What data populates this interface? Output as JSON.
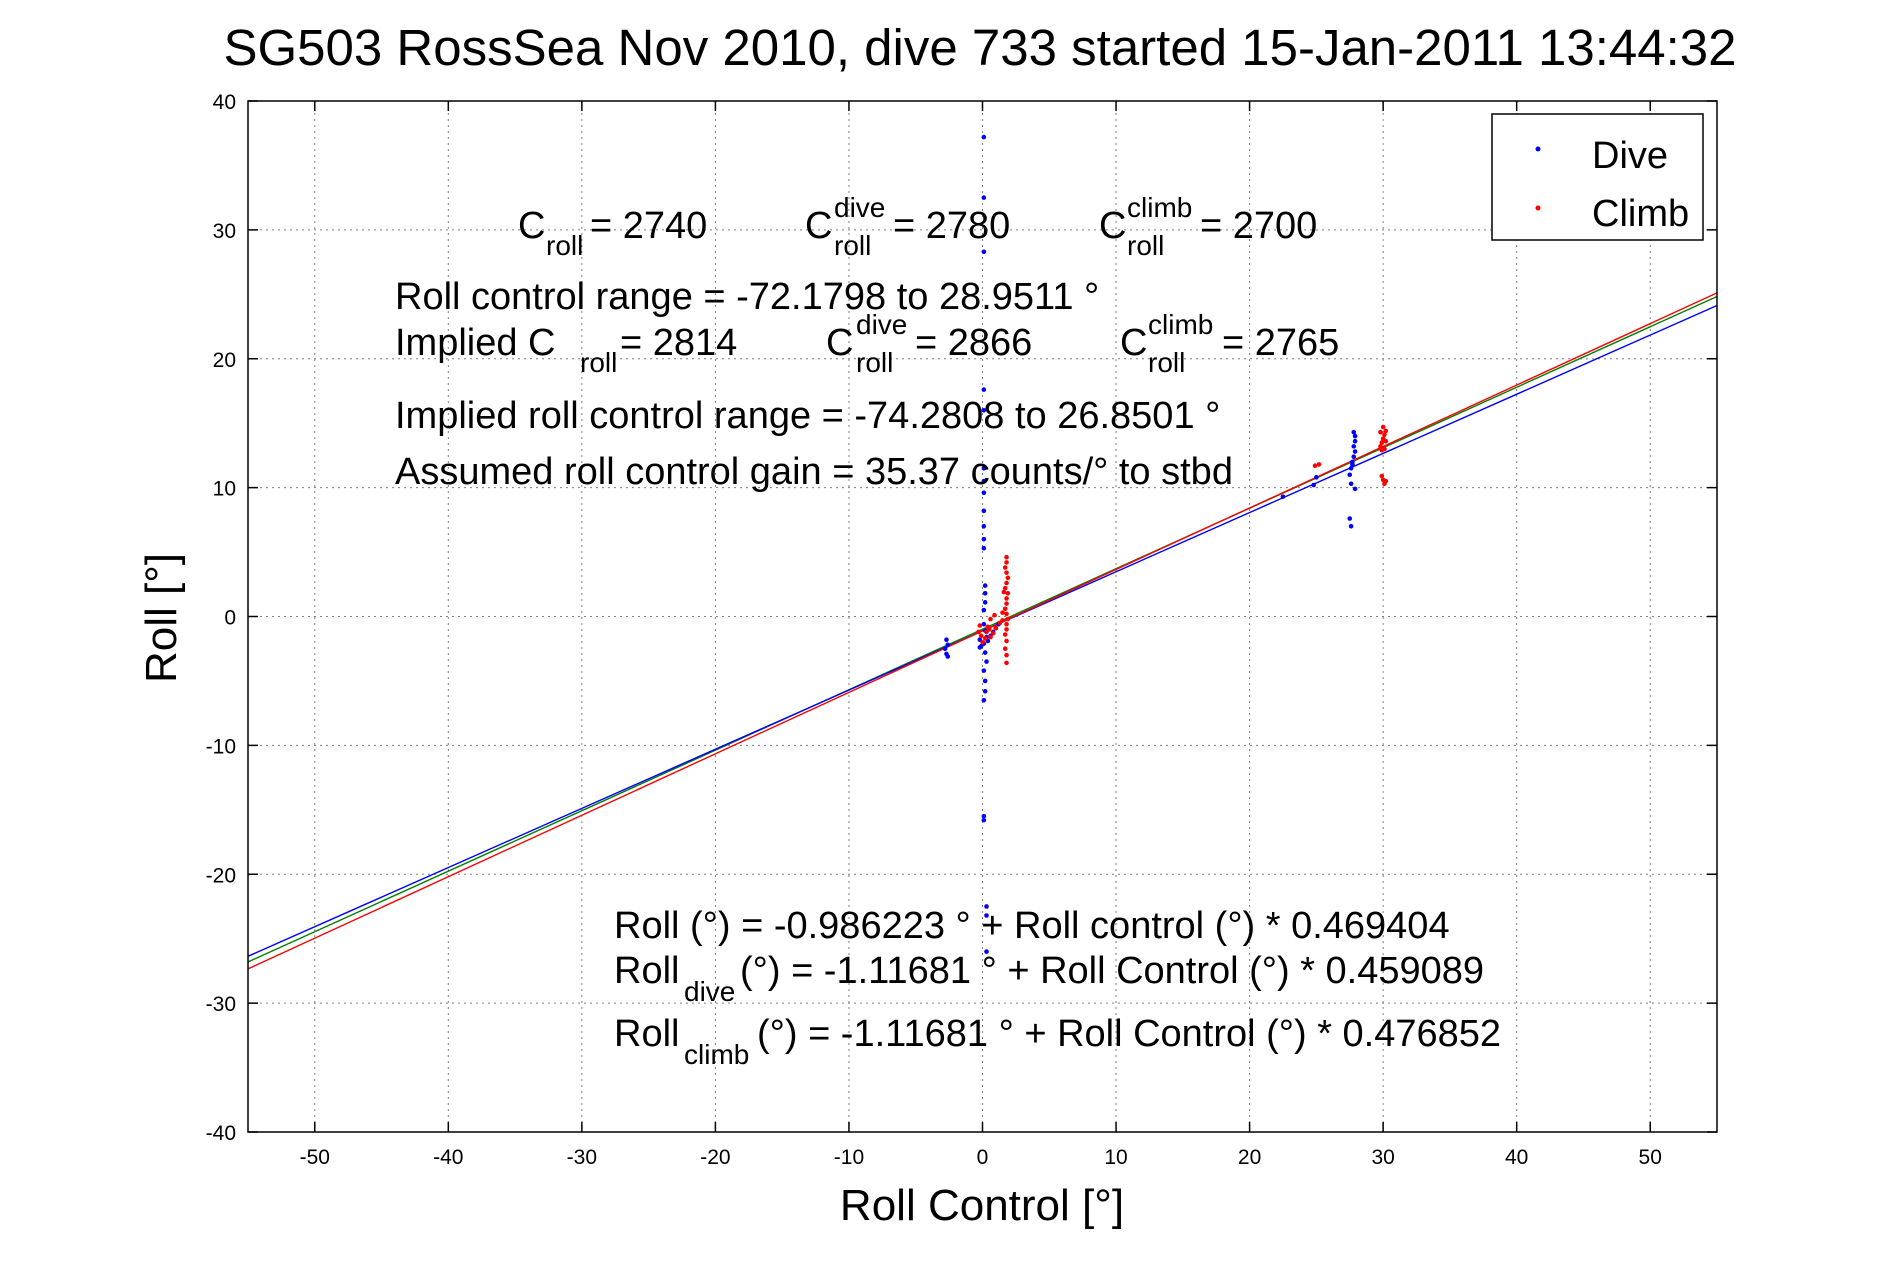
{
  "chart_data": {
    "type": "scatter",
    "title": "SG503 RossSea Nov 2010, dive 733 started 15-Jan-2011 13:44:32",
    "xlabel": "Roll Control [°]",
    "ylabel": "Roll [°]",
    "xlim": [
      -55,
      55
    ],
    "ylim": [
      -40,
      40
    ],
    "x_ticks": [
      -50,
      -40,
      -30,
      -20,
      -10,
      0,
      10,
      20,
      30,
      40,
      50
    ],
    "y_ticks": [
      -40,
      -30,
      -20,
      -10,
      0,
      10,
      20,
      30,
      40
    ],
    "grid": true,
    "legend_position": "top-right",
    "legend": [
      {
        "label": "Dive",
        "color": "#0000ff"
      },
      {
        "label": "Climb",
        "color": "#ff0000"
      }
    ],
    "series": [
      {
        "name": "Dive",
        "color": "#0000ff",
        "points": [
          [
            0.1,
            37.2
          ],
          [
            0.1,
            32.5
          ],
          [
            0.1,
            28.3
          ],
          [
            0.1,
            17.6
          ],
          [
            0.1,
            16.0
          ],
          [
            0.1,
            11.5
          ],
          [
            0.1,
            10.5
          ],
          [
            0.1,
            9.6
          ],
          [
            0.1,
            8.2
          ],
          [
            0.1,
            7.0
          ],
          [
            0.1,
            6.0
          ],
          [
            0.1,
            5.3
          ],
          [
            0.2,
            2.4
          ],
          [
            0.2,
            1.8
          ],
          [
            0.2,
            1.1
          ],
          [
            0.1,
            0.5
          ],
          [
            0.1,
            -0.6
          ],
          [
            0.2,
            -1.1
          ],
          [
            0.3,
            -1.6
          ],
          [
            0.1,
            -2.1
          ],
          [
            -0.2,
            -2.4
          ],
          [
            0.2,
            -2.8
          ],
          [
            0.3,
            -3.5
          ],
          [
            0.1,
            -4.2
          ],
          [
            0.2,
            -5.0
          ],
          [
            0.2,
            -5.8
          ],
          [
            0.1,
            -6.5
          ],
          [
            0.1,
            -15.5
          ],
          [
            0.1,
            -15.8
          ],
          [
            0.3,
            -22.5
          ],
          [
            0.3,
            -23.2
          ],
          [
            0.3,
            -26.0
          ],
          [
            -0.2,
            -1.8
          ],
          [
            -0.1,
            -2.3
          ],
          [
            0.4,
            -1.9
          ],
          [
            0.6,
            -1.5
          ],
          [
            0.8,
            -1.2
          ],
          [
            1.0,
            -0.9
          ],
          [
            1.2,
            -0.6
          ],
          [
            -2.7,
            -1.8
          ],
          [
            -2.6,
            -2.2
          ],
          [
            -2.8,
            -2.5
          ],
          [
            -2.7,
            -2.9
          ],
          [
            -2.6,
            -3.1
          ],
          [
            22.5,
            9.3
          ],
          [
            24.8,
            10.2
          ],
          [
            25.0,
            10.8
          ],
          [
            27.5,
            11.0
          ],
          [
            27.6,
            11.5
          ],
          [
            27.7,
            12.0
          ],
          [
            27.8,
            12.4
          ],
          [
            27.9,
            12.8
          ],
          [
            27.8,
            13.2
          ],
          [
            27.9,
            13.6
          ],
          [
            27.9,
            14.0
          ],
          [
            27.8,
            14.3
          ],
          [
            27.7,
            11.8
          ],
          [
            27.6,
            10.3
          ],
          [
            27.9,
            9.9
          ],
          [
            27.5,
            7.6
          ],
          [
            27.6,
            7.0
          ]
        ]
      },
      {
        "name": "Climb",
        "color": "#ff0000",
        "points": [
          [
            1.8,
            4.6
          ],
          [
            1.8,
            4.2
          ],
          [
            1.7,
            3.8
          ],
          [
            1.8,
            3.4
          ],
          [
            1.9,
            3.0
          ],
          [
            1.8,
            2.6
          ],
          [
            1.7,
            2.2
          ],
          [
            1.9,
            1.8
          ],
          [
            1.8,
            1.4
          ],
          [
            1.8,
            1.0
          ],
          [
            1.7,
            0.6
          ],
          [
            1.8,
            0.2
          ],
          [
            1.9,
            -0.2
          ],
          [
            1.8,
            -0.6
          ],
          [
            1.8,
            -1.0
          ],
          [
            1.7,
            -1.4
          ],
          [
            1.8,
            -1.9
          ],
          [
            1.7,
            -2.5
          ],
          [
            1.8,
            -3.0
          ],
          [
            1.8,
            -3.6
          ],
          [
            1.6,
            1.9
          ],
          [
            1.5,
            -0.3
          ],
          [
            1.5,
            0.3
          ],
          [
            1.3,
            -0.5
          ],
          [
            1.0,
            -0.9
          ],
          [
            0.8,
            -1.3
          ],
          [
            0.6,
            -1.6
          ],
          [
            0.6,
            -0.2
          ],
          [
            0.4,
            -0.8
          ],
          [
            0.3,
            -1.2
          ],
          [
            0.5,
            -1.0
          ],
          [
            0.9,
            0.1
          ],
          [
            -0.2,
            -0.7
          ],
          [
            -0.3,
            -1.2
          ],
          [
            -0.1,
            -1.5
          ],
          [
            0.0,
            -2.0
          ],
          [
            0.2,
            -1.7
          ],
          [
            24.9,
            11.7
          ],
          [
            25.2,
            11.8
          ],
          [
            29.8,
            13.2
          ],
          [
            29.9,
            13.5
          ],
          [
            30.0,
            13.8
          ],
          [
            30.1,
            14.1
          ],
          [
            30.2,
            14.4
          ],
          [
            30.0,
            14.7
          ],
          [
            29.9,
            12.9
          ],
          [
            30.1,
            13.0
          ],
          [
            30.2,
            13.6
          ],
          [
            29.8,
            14.3
          ],
          [
            30.0,
            10.6
          ],
          [
            30.1,
            10.3
          ],
          [
            29.9,
            10.9
          ],
          [
            30.2,
            10.5
          ]
        ]
      }
    ],
    "fit_lines": [
      {
        "name": "Roll (all)",
        "color": "#008000",
        "intercept": -0.986223,
        "slope": 0.469404
      },
      {
        "name": "Roll dive",
        "color": "#0000ff",
        "intercept": -1.11681,
        "slope": 0.459089
      },
      {
        "name": "Roll climb",
        "color": "#ff0000",
        "intercept": -1.11681,
        "slope": 0.476852
      }
    ],
    "annotations": {
      "c_roll": {
        "base": "C",
        "sub": "roll",
        "value": " = 2740"
      },
      "c_roll_dive": {
        "base": "C",
        "sup": "dive",
        "sub": "roll",
        "value": " = 2780"
      },
      "c_roll_climb": {
        "base": "C",
        "sup": "climb",
        "sub": "roll",
        "value": " = 2700"
      },
      "range": "Roll control range = -72.1798 to 28.9511 °",
      "implied_prefix": "Implied C",
      "implied_sub": "roll",
      "implied_value": " = 2814",
      "implied_dive": {
        "base": "C",
        "sup": "dive",
        "sub": "roll",
        "value": " = 2866"
      },
      "implied_climb": {
        "base": "C",
        "sup": "climb",
        "sub": "roll",
        "value": " = 2765"
      },
      "implied_range": "Implied roll control range = -74.2808 to 26.8501 °",
      "gain": "Assumed roll control gain = 35.37 counts/° to stbd",
      "fit_all": "Roll (°) = -0.986223 ° + Roll control (°) * 0.469404",
      "fit_dive_base": "Roll",
      "fit_dive_sub": "dive",
      "fit_dive_rest": " (°) = -1.11681 ° + Roll Control (°) * 0.459089",
      "fit_climb_base": "Roll",
      "fit_climb_sub": "climb",
      "fit_climb_rest": " (°) = -1.11681 ° + Roll Control (°) * 0.476852"
    }
  }
}
